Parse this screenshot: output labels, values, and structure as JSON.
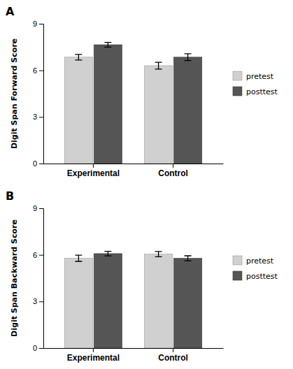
{
  "chart_data": [
    {
      "type": "bar",
      "title": "A",
      "y_label": "Digit Span Forward Score",
      "categories": [
        "Experimental",
        "Control"
      ],
      "series": [
        {
          "name": "pretest",
          "color": "#d0d0d0",
          "values": [
            6.85,
            6.3
          ],
          "errors": [
            0.18,
            0.22
          ]
        },
        {
          "name": "posttest",
          "color": "#555555",
          "values": [
            7.65,
            6.85
          ],
          "errors": [
            0.15,
            0.22
          ]
        }
      ],
      "ylim": [
        0,
        9
      ],
      "yticks": [
        0,
        3,
        6,
        9
      ],
      "grid": false,
      "legend": "right"
    },
    {
      "type": "bar",
      "title": "B",
      "y_label": "Digit Span Backward Score",
      "categories": [
        "Experimental",
        "Control"
      ],
      "series": [
        {
          "name": "pretest",
          "color": "#d0d0d0",
          "values": [
            5.78,
            6.05
          ],
          "errors": [
            0.2,
            0.17
          ]
        },
        {
          "name": "posttest",
          "color": "#555555",
          "values": [
            6.08,
            5.78
          ],
          "errors": [
            0.15,
            0.16
          ]
        }
      ],
      "ylim": [
        0,
        9
      ],
      "yticks": [
        0,
        3,
        6,
        9
      ],
      "grid": false,
      "legend": "right"
    }
  ]
}
